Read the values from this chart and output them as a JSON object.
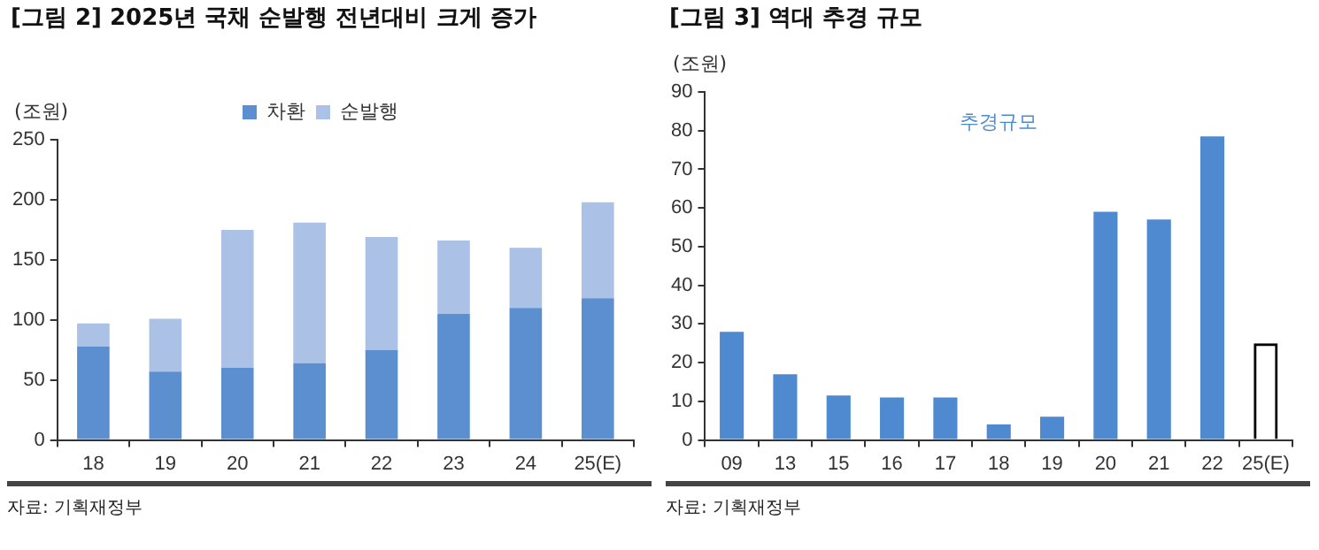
{
  "chart_data": [
    {
      "type": "bar",
      "title": "[그림 2] 2025년 국채 순발행 전년대비 크게 증가",
      "ylabel": "(조원)",
      "categories": [
        "18",
        "19",
        "20",
        "21",
        "22",
        "23",
        "24",
        "25(E)"
      ],
      "stacked": true,
      "series": [
        {
          "name": "차환",
          "color": "#5b8fd0",
          "values": [
            78,
            57,
            60,
            64,
            75,
            105,
            110,
            118
          ]
        },
        {
          "name": "순발행",
          "color": "#abc1e5",
          "values": [
            19,
            44,
            115,
            117,
            94,
            61,
            50,
            80
          ]
        }
      ],
      "ylim": [
        0,
        250
      ],
      "yticks": [
        0,
        50,
        100,
        150,
        200,
        250
      ],
      "grid": false,
      "legend": "top",
      "annotations": [
        "자료: 기획재정부"
      ]
    },
    {
      "type": "bar",
      "title": "[그림 3] 역대 추경 규모",
      "ylabel": "(조원)",
      "categories": [
        "09",
        "13",
        "15",
        "16",
        "17",
        "18",
        "19",
        "20",
        "21",
        "22",
        "25(E)"
      ],
      "series": [
        {
          "name": "추경규모",
          "color": "#4f8ad1",
          "values": [
            28,
            17,
            11.5,
            11,
            11,
            4,
            6,
            59,
            57,
            78.5,
            null
          ]
        },
        {
          "color": "#000000",
          "line_style": "dashed",
          "values": [
            null,
            null,
            null,
            null,
            null,
            null,
            null,
            null,
            null,
            null,
            25
          ]
        }
      ],
      "ylim": [
        0,
        90
      ],
      "yticks": [
        0,
        10,
        20,
        30,
        40,
        50,
        60,
        70,
        80,
        90
      ],
      "grid": false,
      "legend": false,
      "annotations": [
        "자료: 기획재정부"
      ]
    }
  ]
}
